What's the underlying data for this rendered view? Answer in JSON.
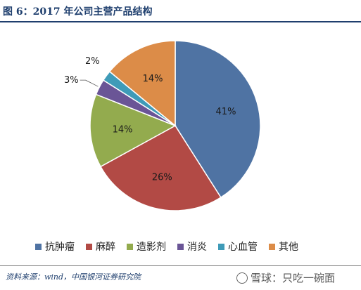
{
  "title": "图 6：2017 年公司主营产品结构",
  "source": "资料来源：wind，中国银河证券研究院",
  "watermark": "雪球：只吃一碗面",
  "chart_data": {
    "type": "pie",
    "title": "",
    "unit": "%",
    "slices": [
      {
        "label": "抗肿瘤",
        "value": 41,
        "display": "41%",
        "color": "#4f73a3"
      },
      {
        "label": "麻醉",
        "value": 26,
        "display": "26%",
        "color": "#b24a45"
      },
      {
        "label": "造影剂",
        "value": 14,
        "display": "14%",
        "color": "#93ab4e"
      },
      {
        "label": "消炎",
        "value": 3,
        "display": "3%",
        "color": "#6a5596"
      },
      {
        "label": "心血管",
        "value": 2,
        "display": "2%",
        "color": "#3f9bb8"
      },
      {
        "label": "其他",
        "value": 14,
        "display": "14%",
        "color": "#dc8c48"
      }
    ],
    "start_angle_deg": 0,
    "direction": "clockwise",
    "legend_position": "bottom"
  }
}
